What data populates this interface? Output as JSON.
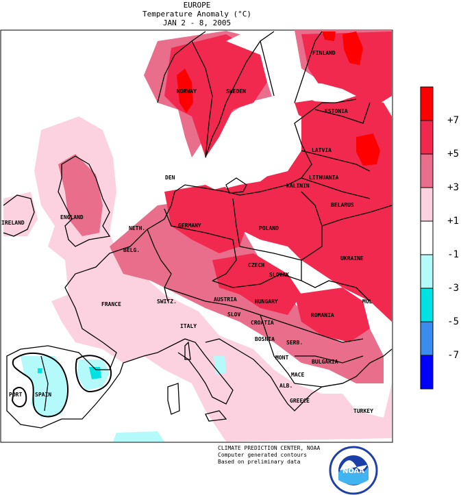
{
  "header": {
    "region": "EUROPE",
    "variable": "Temperature Anomaly (°C)",
    "period": "JAN 2 - 8, 2005"
  },
  "legend": {
    "levels": [
      {
        "label": "+7",
        "color": "#ff0000"
      },
      {
        "label": "+5",
        "color": "#f2294f"
      },
      {
        "label": "+3",
        "color": "#e86e8c"
      },
      {
        "label": "+1",
        "color": "#fcd2e0"
      },
      {
        "label": "-1",
        "color": "#ffffff"
      },
      {
        "label": "-3",
        "color": "#b4fafa"
      },
      {
        "label": "-5",
        "color": "#00e1e1"
      },
      {
        "label": "-7",
        "color": "#3c8cf0"
      },
      {
        "label": "",
        "color": "#0000ff"
      }
    ]
  },
  "countries": [
    {
      "name": "FINLAND"
    },
    {
      "name": "NORWAY"
    },
    {
      "name": "SWEDEN"
    },
    {
      "name": "ESTONIA"
    },
    {
      "name": "LATVIA"
    },
    {
      "name": "DEN"
    },
    {
      "name": "LITHUANIA"
    },
    {
      "name": "KALININ"
    },
    {
      "name": "BELARUS"
    },
    {
      "name": "ENGLAND"
    },
    {
      "name": "IRELAND"
    },
    {
      "name": "NETH."
    },
    {
      "name": "GERMANY"
    },
    {
      "name": "POLAND"
    },
    {
      "name": "BELG."
    },
    {
      "name": "CZECH"
    },
    {
      "name": "SLOVAK"
    },
    {
      "name": "UKRAINE"
    },
    {
      "name": "FRANCE"
    },
    {
      "name": "SWITZ."
    },
    {
      "name": "AUSTRIA"
    },
    {
      "name": "HUNGARY"
    },
    {
      "name": "MOL"
    },
    {
      "name": "SLOV"
    },
    {
      "name": "CROATIA"
    },
    {
      "name": "ROMANIA"
    },
    {
      "name": "ITALY"
    },
    {
      "name": "BOSNIA"
    },
    {
      "name": "SERB."
    },
    {
      "name": "MONT"
    },
    {
      "name": "BULGARIA"
    },
    {
      "name": "PORT"
    },
    {
      "name": "SPAIN"
    },
    {
      "name": "MACE"
    },
    {
      "name": "ALB."
    },
    {
      "name": "GREECE"
    },
    {
      "name": "TURKEY"
    }
  ],
  "credits": {
    "line1": "CLIMATE PREDICTION CENTER, NOAA",
    "line2": "Computer generated contours",
    "line3": "Based on preliminary data"
  },
  "logo": {
    "text": "NOAA"
  }
}
